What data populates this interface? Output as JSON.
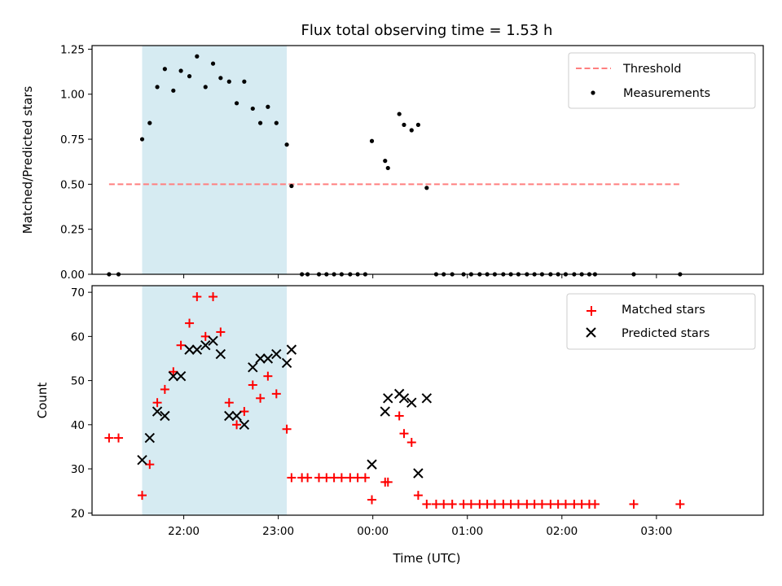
{
  "chart_data": {
    "title": "Flux total observing time = 1.53 h",
    "xlabel": "Time (UTC)",
    "x_ticks": [
      "22:00",
      "23:00",
      "00:00",
      "01:00",
      "02:00",
      "03:00"
    ],
    "x_tick_hours": [
      22,
      23,
      24,
      25,
      26,
      27
    ],
    "xlim_hours": [
      21.03,
      28.13
    ],
    "shaded_interval_hours": [
      21.56,
      23.09
    ],
    "shade_color": "#add8e6",
    "panels": [
      {
        "type": "scatter",
        "ylabel": "Matched/Predicted stars",
        "ylim": [
          0,
          1.27
        ],
        "yticks": [
          "0.00",
          "0.25",
          "0.50",
          "0.75",
          "1.00",
          "1.25"
        ],
        "ytick_values": [
          0,
          0.25,
          0.5,
          0.75,
          1.0,
          1.25
        ],
        "threshold": {
          "name": "Threshold",
          "value": 0.5,
          "x_range_hours": [
            21.21,
            27.25
          ],
          "color": "#ff7f7f"
        },
        "series": [
          {
            "name": "Measurements",
            "color": "#000000",
            "points": [
              [
                21.21,
                0
              ],
              [
                21.31,
                0
              ],
              [
                21.56,
                0.75
              ],
              [
                21.64,
                0.84
              ],
              [
                21.72,
                1.04
              ],
              [
                21.8,
                1.14
              ],
              [
                21.89,
                1.02
              ],
              [
                21.97,
                1.13
              ],
              [
                22.06,
                1.1
              ],
              [
                22.14,
                1.21
              ],
              [
                22.23,
                1.04
              ],
              [
                22.31,
                1.17
              ],
              [
                22.39,
                1.09
              ],
              [
                22.48,
                1.07
              ],
              [
                22.56,
                0.95
              ],
              [
                22.64,
                1.07
              ],
              [
                22.73,
                0.92
              ],
              [
                22.81,
                0.84
              ],
              [
                22.89,
                0.93
              ],
              [
                22.98,
                0.84
              ],
              [
                23.09,
                0.72
              ],
              [
                23.14,
                0.49
              ],
              [
                23.25,
                0
              ],
              [
                23.31,
                0
              ],
              [
                23.43,
                0
              ],
              [
                23.51,
                0
              ],
              [
                23.59,
                0
              ],
              [
                23.67,
                0
              ],
              [
                23.76,
                0
              ],
              [
                23.84,
                0
              ],
              [
                23.92,
                0
              ],
              [
                23.99,
                0.74
              ],
              [
                24.13,
                0.63
              ],
              [
                24.16,
                0.59
              ],
              [
                24.28,
                0.89
              ],
              [
                24.33,
                0.83
              ],
              [
                24.41,
                0.8
              ],
              [
                24.48,
                0.83
              ],
              [
                24.57,
                0.48
              ],
              [
                24.67,
                0
              ],
              [
                24.75,
                0
              ],
              [
                24.84,
                0
              ],
              [
                24.96,
                0
              ],
              [
                25.04,
                0
              ],
              [
                25.13,
                0
              ],
              [
                25.21,
                0
              ],
              [
                25.29,
                0
              ],
              [
                25.38,
                0
              ],
              [
                25.46,
                0
              ],
              [
                25.54,
                0
              ],
              [
                25.63,
                0
              ],
              [
                25.71,
                0
              ],
              [
                25.79,
                0
              ],
              [
                25.88,
                0
              ],
              [
                25.96,
                0
              ],
              [
                26.04,
                0
              ],
              [
                26.13,
                0
              ],
              [
                26.21,
                0
              ],
              [
                26.29,
                0
              ],
              [
                26.35,
                0
              ],
              [
                26.76,
                0
              ],
              [
                27.25,
                0
              ]
            ]
          }
        ],
        "legend": [
          "Threshold",
          "Measurements"
        ],
        "legend_position": "upper right"
      },
      {
        "type": "scatter",
        "ylabel": "Count",
        "ylim": [
          19.5,
          71.5
        ],
        "yticks": [
          "20",
          "30",
          "40",
          "50",
          "60",
          "70"
        ],
        "ytick_values": [
          20,
          30,
          40,
          50,
          60,
          70
        ],
        "series": [
          {
            "name": "Matched stars",
            "marker": "+",
            "color": "#ff0000",
            "points": [
              [
                21.21,
                37
              ],
              [
                21.31,
                37
              ],
              [
                21.56,
                24
              ],
              [
                21.64,
                31
              ],
              [
                21.72,
                45
              ],
              [
                21.8,
                48
              ],
              [
                21.89,
                52
              ],
              [
                21.97,
                58
              ],
              [
                22.06,
                63
              ],
              [
                22.14,
                69
              ],
              [
                22.23,
                60
              ],
              [
                22.31,
                69
              ],
              [
                22.39,
                61
              ],
              [
                22.48,
                45
              ],
              [
                22.56,
                40
              ],
              [
                22.64,
                43
              ],
              [
                22.73,
                49
              ],
              [
                22.81,
                46
              ],
              [
                22.89,
                51
              ],
              [
                22.98,
                47
              ],
              [
                23.09,
                39
              ],
              [
                23.14,
                28
              ],
              [
                23.25,
                28
              ],
              [
                23.31,
                28
              ],
              [
                23.43,
                28
              ],
              [
                23.51,
                28
              ],
              [
                23.59,
                28
              ],
              [
                23.67,
                28
              ],
              [
                23.76,
                28
              ],
              [
                23.84,
                28
              ],
              [
                23.92,
                28
              ],
              [
                23.99,
                23
              ],
              [
                24.13,
                27
              ],
              [
                24.16,
                27
              ],
              [
                24.28,
                42
              ],
              [
                24.33,
                38
              ],
              [
                24.41,
                36
              ],
              [
                24.48,
                24
              ],
              [
                24.57,
                22
              ],
              [
                24.67,
                22
              ],
              [
                24.75,
                22
              ],
              [
                24.84,
                22
              ],
              [
                24.96,
                22
              ],
              [
                25.04,
                22
              ],
              [
                25.13,
                22
              ],
              [
                25.21,
                22
              ],
              [
                25.29,
                22
              ],
              [
                25.38,
                22
              ],
              [
                25.46,
                22
              ],
              [
                25.54,
                22
              ],
              [
                25.63,
                22
              ],
              [
                25.71,
                22
              ],
              [
                25.79,
                22
              ],
              [
                25.88,
                22
              ],
              [
                25.96,
                22
              ],
              [
                26.04,
                22
              ],
              [
                26.13,
                22
              ],
              [
                26.21,
                22
              ],
              [
                26.29,
                22
              ],
              [
                26.35,
                22
              ],
              [
                26.76,
                22
              ],
              [
                27.25,
                22
              ]
            ]
          },
          {
            "name": "Predicted stars",
            "marker": "x",
            "color": "#000000",
            "points": [
              [
                21.56,
                32
              ],
              [
                21.64,
                37
              ],
              [
                21.72,
                43
              ],
              [
                21.8,
                42
              ],
              [
                21.89,
                51
              ],
              [
                21.97,
                51
              ],
              [
                22.06,
                57
              ],
              [
                22.14,
                57
              ],
              [
                22.23,
                58
              ],
              [
                22.31,
                59
              ],
              [
                22.39,
                56
              ],
              [
                22.48,
                42
              ],
              [
                22.56,
                42
              ],
              [
                22.64,
                40
              ],
              [
                22.73,
                53
              ],
              [
                22.81,
                55
              ],
              [
                22.89,
                55
              ],
              [
                22.98,
                56
              ],
              [
                23.09,
                54
              ],
              [
                23.14,
                57
              ],
              [
                23.99,
                31
              ],
              [
                24.13,
                43
              ],
              [
                24.16,
                46
              ],
              [
                24.28,
                47
              ],
              [
                24.33,
                46
              ],
              [
                24.41,
                45
              ],
              [
                24.48,
                29
              ],
              [
                24.57,
                46
              ]
            ]
          }
        ],
        "legend": [
          "Matched stars",
          "Predicted stars"
        ],
        "legend_position": "upper right"
      }
    ]
  }
}
